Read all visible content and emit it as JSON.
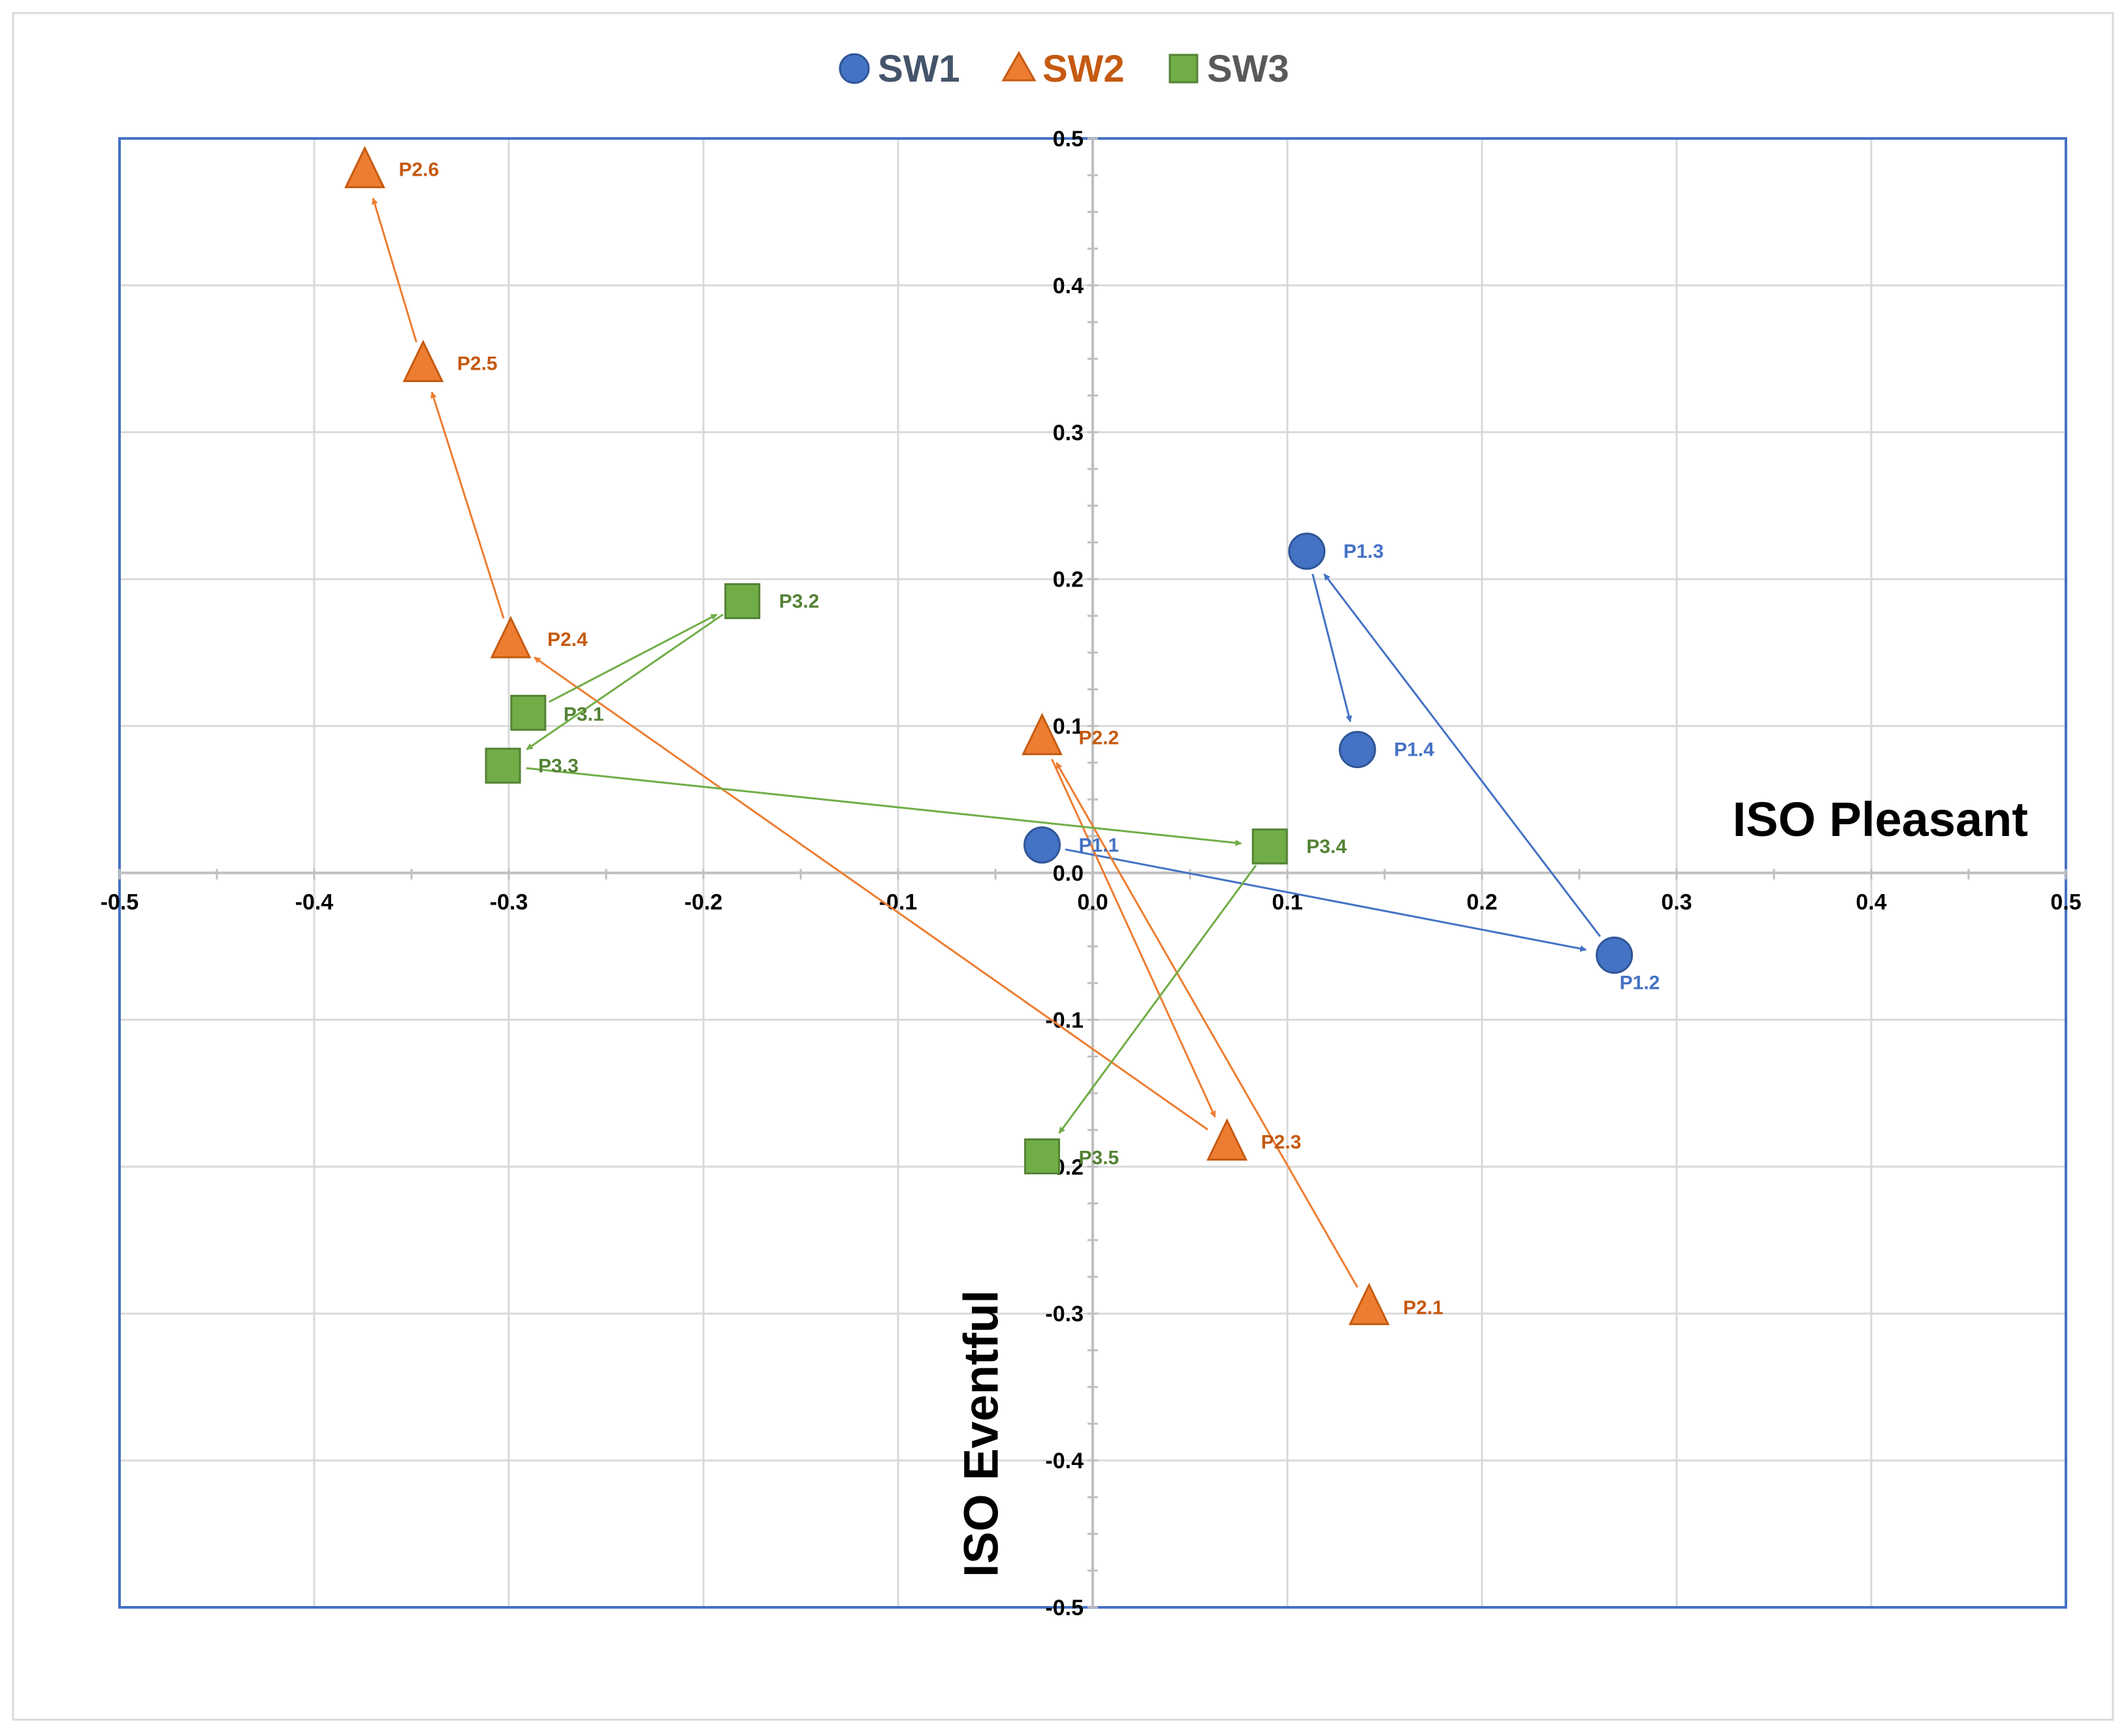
{
  "chart_data": {
    "type": "scatter",
    "title": "",
    "xlabel": "ISO Pleasant",
    "ylabel": "ISO Eventful",
    "xlim": [
      -0.5,
      0.5
    ],
    "ylim": [
      -0.5,
      0.5
    ],
    "x_ticks": [
      {
        "value": -0.5,
        "label": "-0.5"
      },
      {
        "value": -0.4,
        "label": "-0.4"
      },
      {
        "value": -0.3,
        "label": "-0.3"
      },
      {
        "value": -0.2,
        "label": "-0.2"
      },
      {
        "value": -0.1,
        "label": "-0.1"
      },
      {
        "value": 0.0,
        "label": "0.0"
      },
      {
        "value": 0.1,
        "label": "0.1"
      },
      {
        "value": 0.2,
        "label": "0.2"
      },
      {
        "value": 0.3,
        "label": "0.3"
      },
      {
        "value": 0.4,
        "label": "0.4"
      },
      {
        "value": 0.5,
        "label": "0.5"
      }
    ],
    "y_ticks": [
      {
        "value": 0.5,
        "label": "0.5"
      },
      {
        "value": 0.4,
        "label": "0.4"
      },
      {
        "value": 0.3,
        "label": "0.3"
      },
      {
        "value": 0.2,
        "label": "0.2"
      },
      {
        "value": 0.1,
        "label": "0.1"
      },
      {
        "value": 0.0,
        "label": "0.0"
      },
      {
        "value": -0.1,
        "label": "-0.1"
      },
      {
        "value": -0.2,
        "label": "-0.2"
      },
      {
        "value": -0.3,
        "label": "-0.3"
      },
      {
        "value": -0.4,
        "label": "-0.4"
      },
      {
        "value": -0.5,
        "label": "-0.5"
      }
    ],
    "grid": true,
    "legend_position": "top-center",
    "series": [
      {
        "name": "SW1",
        "marker": "circle",
        "color": "#4472C4",
        "points": [
          {
            "label": "P1.1",
            "x": -0.026,
            "y": 0.019
          },
          {
            "label": "P1.2",
            "x": 0.268,
            "y": -0.056
          },
          {
            "label": "P1.3",
            "x": 0.11,
            "y": 0.219
          },
          {
            "label": "P1.4",
            "x": 0.136,
            "y": 0.084
          }
        ]
      },
      {
        "name": "SW2",
        "marker": "triangle",
        "color": "#ED7D31",
        "points": [
          {
            "label": "P2.1",
            "x": 0.142,
            "y": -0.296
          },
          {
            "label": "P2.2",
            "x": -0.026,
            "y": 0.092
          },
          {
            "label": "P2.3",
            "x": 0.069,
            "y": -0.184
          },
          {
            "label": "P2.4",
            "x": -0.299,
            "y": 0.158
          },
          {
            "label": "P2.5",
            "x": -0.344,
            "y": 0.346
          },
          {
            "label": "P2.6",
            "x": -0.374,
            "y": 0.478
          }
        ]
      },
      {
        "name": "SW3",
        "marker": "square",
        "color": "#70AD47",
        "points": [
          {
            "label": "P3.1",
            "x": -0.29,
            "y": 0.109
          },
          {
            "label": "P3.2",
            "x": -0.18,
            "y": 0.185
          },
          {
            "label": "P3.3",
            "x": -0.303,
            "y": 0.073
          },
          {
            "label": "P3.4",
            "x": 0.091,
            "y": 0.018
          },
          {
            "label": "P3.5",
            "x": -0.026,
            "y": -0.193
          }
        ]
      }
    ]
  },
  "colors": {
    "frame": "#4472C4",
    "grid": "#D9D9D9",
    "axis": "#BFBFBF",
    "sw1": "#4472C4",
    "sw2": "#ED7D31",
    "sw3": "#70AD47",
    "sw1_label": "#4472C4",
    "sw2_label": "#C55A11",
    "sw3_label": "#548235",
    "legend_sw1": "#44546A",
    "legend_sw2": "#C55A11",
    "legend_sw3": "#595959"
  }
}
